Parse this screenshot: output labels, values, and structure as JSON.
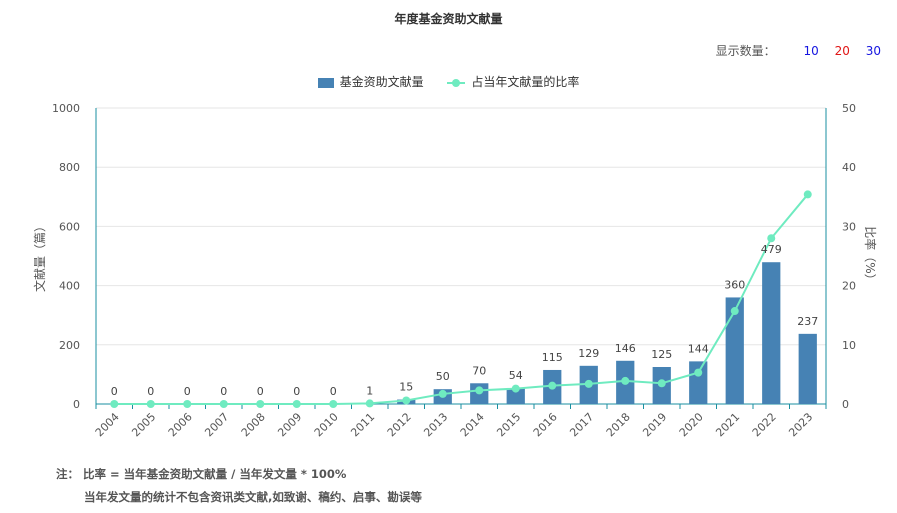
{
  "title": "年度基金资助文献量",
  "display_count": {
    "label": "显示数量：",
    "options": [
      {
        "label": "10",
        "color": "#1515e0"
      },
      {
        "label": "20",
        "color": "#e01515"
      },
      {
        "label": "30",
        "color": "#1515e0"
      }
    ]
  },
  "legend": {
    "bar_label": "基金资助文献量",
    "line_label": "占当年文献量的比率"
  },
  "notes": {
    "line1": "注： 比率 = 当年基金资助文献量 / 当年发文量 * 100%",
    "line2": "当年发文量的统计不包含资讯类文献,如致谢、稿约、启事、勘误等"
  },
  "chart_data": {
    "type": "bar",
    "categories": [
      "2004",
      "2005",
      "2006",
      "2007",
      "2008",
      "2009",
      "2010",
      "2011",
      "2012",
      "2013",
      "2014",
      "2015",
      "2016",
      "2017",
      "2018",
      "2019",
      "2020",
      "2021",
      "2022",
      "2023"
    ],
    "series": [
      {
        "name": "基金资助文献量",
        "type": "bar",
        "axis": "left",
        "color": "#4682B4",
        "values": [
          0,
          0,
          0,
          0,
          0,
          0,
          0,
          1,
          15,
          50,
          70,
          54,
          115,
          129,
          146,
          125,
          144,
          360,
          479,
          237
        ]
      },
      {
        "name": "占当年文献量的比率",
        "type": "line",
        "axis": "right",
        "color": "#6FEBC0",
        "values": [
          0,
          0,
          0,
          0,
          0,
          0,
          0,
          0.1,
          0.6,
          1.7,
          2.3,
          2.6,
          3.1,
          3.4,
          3.9,
          3.5,
          5.3,
          15.7,
          28.0,
          35.4
        ]
      }
    ],
    "ylabel": "文献量（篇）",
    "y2label": "比率（%）",
    "ylim": [
      0,
      1000
    ],
    "y2lim": [
      0,
      50
    ],
    "yticks": [
      0,
      200,
      400,
      600,
      800,
      1000
    ],
    "y2ticks": [
      0,
      10,
      20,
      30,
      40,
      50
    ],
    "grid": true,
    "legend_position": "top-center"
  }
}
